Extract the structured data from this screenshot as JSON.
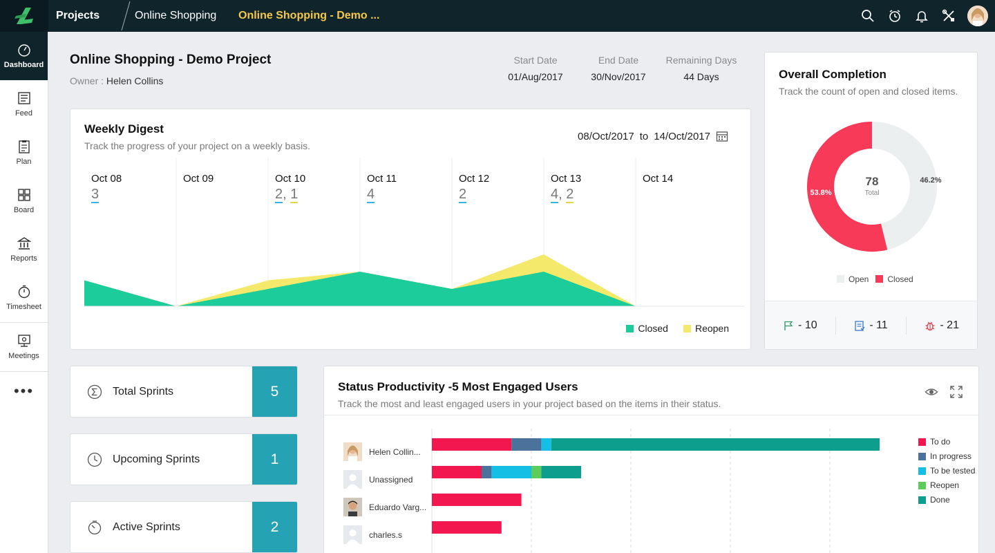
{
  "topbar": {
    "projects_label": "Projects",
    "project_name": "Online Shopping",
    "current_page": "Online Shopping - Demo ..."
  },
  "sidebar": {
    "items": [
      {
        "label": "Dashboard",
        "icon": "dashboard-icon"
      },
      {
        "label": "Feed",
        "icon": "feed-icon"
      },
      {
        "label": "Plan",
        "icon": "plan-icon"
      },
      {
        "label": "Board",
        "icon": "board-icon"
      },
      {
        "label": "Reports",
        "icon": "reports-icon"
      },
      {
        "label": "Timesheet",
        "icon": "timesheet-icon"
      },
      {
        "label": "Meetings",
        "icon": "meetings-icon"
      }
    ],
    "more_label": "•••"
  },
  "project": {
    "title": "Online Shopping - Demo Project",
    "owner_label": "Owner :",
    "owner_name": "Helen Collins",
    "start_date_label": "Start Date",
    "start_date": "01/Aug/2017",
    "end_date_label": "End Date",
    "end_date": "30/Nov/2017",
    "remaining_label": "Remaining Days",
    "remaining": "44 Days"
  },
  "weekly_digest": {
    "title": "Weekly Digest",
    "subtitle": "Track the progress of your project on a weekly basis.",
    "from": "08/Oct/2017",
    "to_label": "to",
    "to": "14/Oct/2017",
    "days": [
      {
        "label": "Oct 08",
        "closed": "3",
        "reopen": ""
      },
      {
        "label": "Oct 09",
        "closed": "",
        "reopen": ""
      },
      {
        "label": "Oct 10",
        "closed": "2",
        "reopen": "1"
      },
      {
        "label": "Oct 11",
        "closed": "4",
        "reopen": ""
      },
      {
        "label": "Oct 12",
        "closed": "2",
        "reopen": ""
      },
      {
        "label": "Oct 13",
        "closed": "4",
        "reopen": "2"
      },
      {
        "label": "Oct 14",
        "closed": "",
        "reopen": ""
      }
    ],
    "legend_closed": "Closed",
    "legend_reopen": "Reopen"
  },
  "chart_data": [
    {
      "type": "area",
      "x": [
        "Oct 08",
        "Oct 09",
        "Oct 10",
        "Oct 11",
        "Oct 12",
        "Oct 13",
        "Oct 14"
      ],
      "series": [
        {
          "name": "Closed",
          "values": [
            3,
            0,
            2,
            4,
            2,
            4,
            0
          ],
          "color": "#1ccc9b"
        },
        {
          "name": "Reopen",
          "values": [
            0,
            0,
            1,
            0,
            0,
            2,
            0
          ],
          "color": "#f4e96b"
        }
      ],
      "stacked": true,
      "grid": false,
      "legend": "bottom-right"
    },
    {
      "type": "pie",
      "categories": [
        "Open",
        "Closed"
      ],
      "values": [
        46.2,
        53.8
      ],
      "labels": [
        "46.2%",
        "53.8%"
      ],
      "center_value": "78",
      "center_label": "Total",
      "colors": [
        "#eceff0",
        "#f73a58"
      ],
      "legend": "bottom"
    },
    {
      "type": "bar",
      "orientation": "horizontal",
      "stacked": true,
      "categories": [
        "Helen Collin...",
        "Unassigned",
        "Eduardo Varg...",
        "charles.s"
      ],
      "series": [
        {
          "name": "To do",
          "values": [
            16,
            10,
            18,
            14
          ],
          "color": "#f2174f"
        },
        {
          "name": "In progress",
          "values": [
            6,
            2,
            0,
            0
          ],
          "color": "#4a729b"
        },
        {
          "name": "To be tested",
          "values": [
            2,
            8,
            0,
            0
          ],
          "color": "#14bfe5"
        },
        {
          "name": "Reopen",
          "values": [
            0,
            2,
            0,
            0
          ],
          "color": "#5ccc5c"
        },
        {
          "name": "Done",
          "values": [
            66,
            8,
            0,
            0
          ],
          "color": "#0e9e8e"
        }
      ],
      "xlim": [
        0,
        100
      ],
      "grid": true,
      "legend": "right"
    }
  ],
  "completion": {
    "title": "Overall Completion",
    "subtitle": "Track the count of open and closed items.",
    "legend_open": "Open",
    "legend_closed": "Closed",
    "milestones": "- 10",
    "tasks": "- 11",
    "bugs": "- 21"
  },
  "sprints": [
    {
      "label": "Total Sprints",
      "value": "5",
      "icon": "sigma-icon"
    },
    {
      "label": "Upcoming Sprints",
      "value": "1",
      "icon": "clock-icon"
    },
    {
      "label": "Active Sprints",
      "value": "2",
      "icon": "timer-icon"
    }
  ],
  "productivity": {
    "title": "Status Productivity -5 Most Engaged Users",
    "subtitle": "Track the most and least engaged users in your project based on the items in their status."
  },
  "colors": {
    "topbar": "#10242c",
    "closed_green": "#1ccc9b",
    "reopen_yellow": "#f4e96b",
    "accent_teal": "#25a3b5",
    "closed_red": "#f73a58"
  }
}
